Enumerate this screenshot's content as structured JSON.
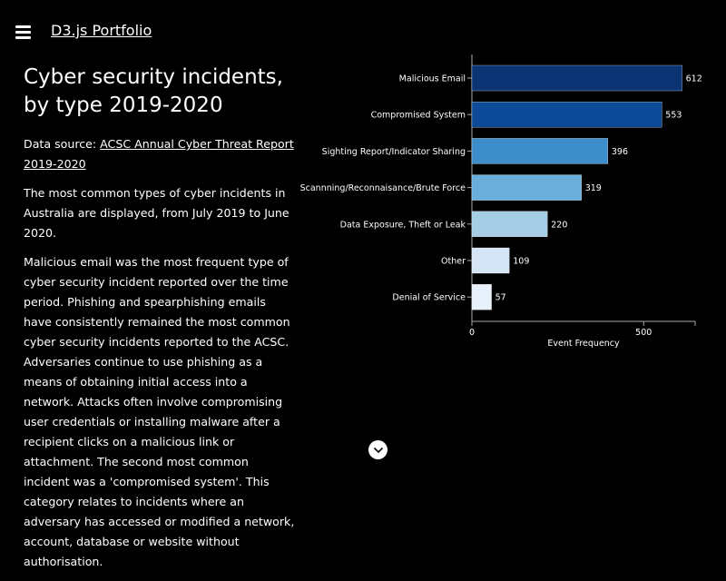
{
  "header": {
    "brand": "D3.js Portfolio",
    "menu_icon": "hamburger-icon"
  },
  "article": {
    "title": "Cyber security incidents, by type 2019-2020",
    "source_label": "Data source: ",
    "source_link": "ACSC Annual Cyber Threat Report 2019-2020",
    "para1": "The most common types of cyber incidents in Australia are displayed, from July 2019 to June 2020.",
    "para2": "Malicious email was the most frequent type of cyber security incident reported over the time period. Phishing and spearphishing emails have consistently remained the most common cyber security incidents reported to the ACSC. Adversaries continue to use phishing as a means of obtaining initial access into a network. Attacks often involve compromising user credentials or installing malware after a recipient clicks on a malicious link or attachment. The second most common incident was a 'compromised system'. This category relates to incidents where an adversary has accessed or modified a network, account, database or website without authorisation."
  },
  "scroll_button": {
    "icon": "chevron-down-icon"
  },
  "chart_data": {
    "type": "bar",
    "orientation": "horizontal",
    "categories": [
      "Malicious Email",
      "Compromised System",
      "Sighting Report/Indicator Sharing",
      "Scannning/Reconnaisance/Brute Force",
      "Data Exposure, Theft or Leak",
      "Other",
      "Denial of Service"
    ],
    "values": [
      612,
      553,
      396,
      319,
      220,
      109,
      57
    ],
    "colors": [
      "#0b3475",
      "#0d4a97",
      "#3d8dca",
      "#6aaedb",
      "#a6cde6",
      "#d6e5f5",
      "#e8f1fb"
    ],
    "xlabel": "Event Frequency",
    "ylabel": "",
    "xlim": [
      0,
      650
    ],
    "xticks": [
      0,
      500
    ],
    "grid": false
  }
}
